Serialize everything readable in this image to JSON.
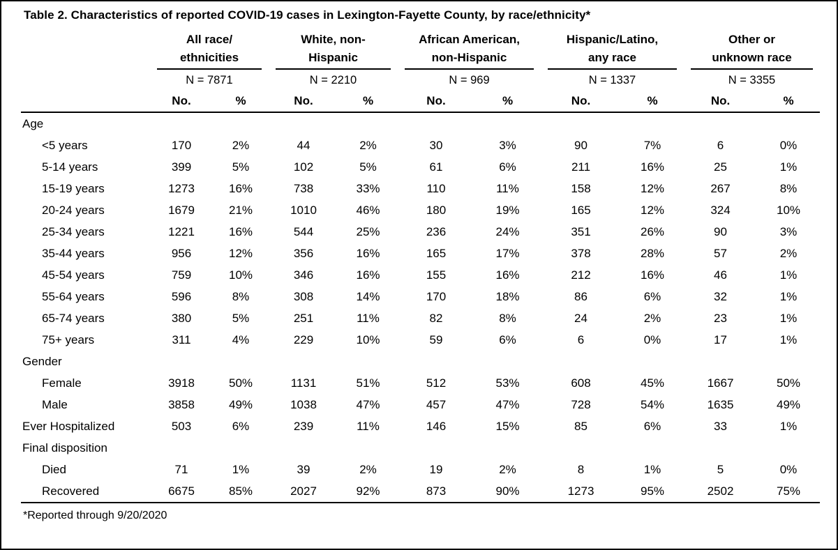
{
  "chart_data": {
    "type": "table",
    "title": "Table 2. Characteristics of reported COVID-19 cases in Lexington-Fayette County, by race/ethnicity*",
    "footnote": "*Reported through 9/20/2020",
    "col_headers": {
      "no": "No.",
      "pct": "%"
    },
    "groups": [
      {
        "name": "All race/ethnicities",
        "line1": "All race/",
        "line2": "ethnicities",
        "n_label": "N = 7871"
      },
      {
        "name": "White, non-Hispanic",
        "line1": "White, non-",
        "line2": "Hispanic",
        "n_label": "N = 2210"
      },
      {
        "name": "African American, non-Hispanic",
        "line1": "African American,",
        "line2": "non-Hispanic",
        "n_label": "N = 969"
      },
      {
        "name": "Hispanic/Latino, any race",
        "line1": "Hispanic/Latino,",
        "line2": "any race",
        "n_label": "N = 1337"
      },
      {
        "name": "Other or unknown race",
        "line1": "Other or",
        "line2": "unknown race",
        "n_label": "N = 3355"
      }
    ],
    "rows": [
      {
        "label": "Age",
        "section": true,
        "indent": false,
        "values": []
      },
      {
        "label": "<5 years",
        "section": false,
        "indent": true,
        "values": [
          "170",
          "2%",
          "44",
          "2%",
          "30",
          "3%",
          "90",
          "7%",
          "6",
          "0%"
        ]
      },
      {
        "label": "5-14 years",
        "section": false,
        "indent": true,
        "values": [
          "399",
          "5%",
          "102",
          "5%",
          "61",
          "6%",
          "211",
          "16%",
          "25",
          "1%"
        ]
      },
      {
        "label": "15-19 years",
        "section": false,
        "indent": true,
        "values": [
          "1273",
          "16%",
          "738",
          "33%",
          "110",
          "11%",
          "158",
          "12%",
          "267",
          "8%"
        ]
      },
      {
        "label": "20-24 years",
        "section": false,
        "indent": true,
        "values": [
          "1679",
          "21%",
          "1010",
          "46%",
          "180",
          "19%",
          "165",
          "12%",
          "324",
          "10%"
        ]
      },
      {
        "label": "25-34 years",
        "section": false,
        "indent": true,
        "values": [
          "1221",
          "16%",
          "544",
          "25%",
          "236",
          "24%",
          "351",
          "26%",
          "90",
          "3%"
        ]
      },
      {
        "label": "35-44 years",
        "section": false,
        "indent": true,
        "values": [
          "956",
          "12%",
          "356",
          "16%",
          "165",
          "17%",
          "378",
          "28%",
          "57",
          "2%"
        ]
      },
      {
        "label": "45-54 years",
        "section": false,
        "indent": true,
        "values": [
          "759",
          "10%",
          "346",
          "16%",
          "155",
          "16%",
          "212",
          "16%",
          "46",
          "1%"
        ]
      },
      {
        "label": "55-64 years",
        "section": false,
        "indent": true,
        "values": [
          "596",
          "8%",
          "308",
          "14%",
          "170",
          "18%",
          "86",
          "6%",
          "32",
          "1%"
        ]
      },
      {
        "label": "65-74 years",
        "section": false,
        "indent": true,
        "values": [
          "380",
          "5%",
          "251",
          "11%",
          "82",
          "8%",
          "24",
          "2%",
          "23",
          "1%"
        ]
      },
      {
        "label": "75+ years",
        "section": false,
        "indent": true,
        "values": [
          "311",
          "4%",
          "229",
          "10%",
          "59",
          "6%",
          "6",
          "0%",
          "17",
          "1%"
        ]
      },
      {
        "label": "Gender",
        "section": true,
        "indent": false,
        "values": []
      },
      {
        "label": "Female",
        "section": false,
        "indent": true,
        "values": [
          "3918",
          "50%",
          "1131",
          "51%",
          "512",
          "53%",
          "608",
          "45%",
          "1667",
          "50%"
        ]
      },
      {
        "label": "Male",
        "section": false,
        "indent": true,
        "values": [
          "3858",
          "49%",
          "1038",
          "47%",
          "457",
          "47%",
          "728",
          "54%",
          "1635",
          "49%"
        ]
      },
      {
        "label": "Ever Hospitalized",
        "section": false,
        "indent": false,
        "values": [
          "503",
          "6%",
          "239",
          "11%",
          "146",
          "15%",
          "85",
          "6%",
          "33",
          "1%"
        ]
      },
      {
        "label": "Final disposition",
        "section": true,
        "indent": false,
        "values": []
      },
      {
        "label": "Died",
        "section": false,
        "indent": true,
        "values": [
          "71",
          "1%",
          "39",
          "2%",
          "19",
          "2%",
          "8",
          "1%",
          "5",
          "0%"
        ]
      },
      {
        "label": "Recovered",
        "section": false,
        "indent": true,
        "last": true,
        "values": [
          "6675",
          "85%",
          "2027",
          "92%",
          "873",
          "90%",
          "1273",
          "95%",
          "2502",
          "75%"
        ]
      }
    ]
  }
}
